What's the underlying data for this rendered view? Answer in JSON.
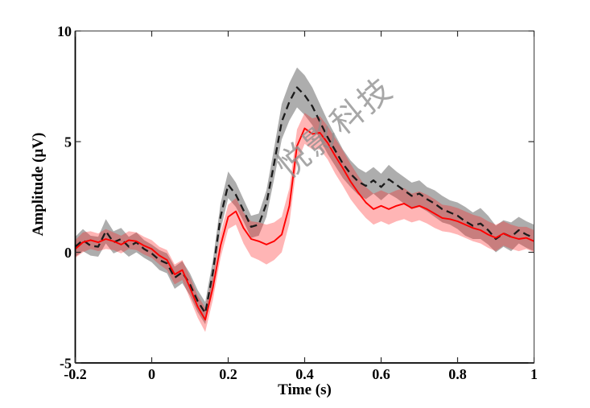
{
  "figure": {
    "background": "#ffffff",
    "watermark": {
      "text": "悦影科技",
      "color": "#8f8f8f",
      "rotation_deg": -39
    }
  },
  "chart_data": {
    "type": "line",
    "title": "",
    "xlabel": "Time (s)",
    "ylabel": "Amplitude (µV)",
    "xlim": [
      -0.2,
      1.0
    ],
    "ylim": [
      -5,
      10
    ],
    "grid": false,
    "legend": null,
    "box": true,
    "ticks_direction": "in",
    "xticks": {
      "values": [
        -0.2,
        0,
        0.2,
        0.4,
        0.6,
        0.8,
        1.0
      ],
      "labels": [
        "-0.2",
        "0",
        "0.2",
        "0.4",
        "0.6",
        "0.8",
        "1"
      ]
    },
    "yticks": {
      "values": [
        -5,
        0,
        5,
        10
      ],
      "labels": [
        "-5",
        "0",
        "5",
        "10"
      ]
    },
    "x": [
      -0.2,
      -0.18,
      -0.16,
      -0.14,
      -0.12,
      -0.1,
      -0.08,
      -0.06,
      -0.04,
      -0.02,
      0,
      0.02,
      0.04,
      0.06,
      0.08,
      0.1,
      0.12,
      0.14,
      0.16,
      0.18,
      0.2,
      0.22,
      0.24,
      0.26,
      0.28,
      0.3,
      0.32,
      0.34,
      0.36,
      0.38,
      0.4,
      0.42,
      0.44,
      0.46,
      0.48,
      0.5,
      0.52,
      0.54,
      0.56,
      0.58,
      0.6,
      0.62,
      0.64,
      0.66,
      0.68,
      0.7,
      0.72,
      0.74,
      0.76,
      0.78,
      0.8,
      0.82,
      0.84,
      0.86,
      0.88,
      0.9,
      0.92,
      0.94,
      0.96,
      0.98,
      1.0
    ],
    "series": [
      {
        "name": "condition-black-dashed",
        "line_color": "#1a1a1a",
        "line_style": "dashed",
        "line_width": 2.3,
        "band_color": "rgba(60,60,60,0.42)",
        "values": [
          0.25,
          0.55,
          0.3,
          0.25,
          0.95,
          0.45,
          0.6,
          0.25,
          0.45,
          0.15,
          -0.05,
          -0.35,
          -0.5,
          -1.15,
          -0.9,
          -1.45,
          -2.2,
          -2.75,
          -0.9,
          1.6,
          3.05,
          2.6,
          1.9,
          1.15,
          1.25,
          2.2,
          4.0,
          5.9,
          6.8,
          7.45,
          7.1,
          6.6,
          5.9,
          5.2,
          4.6,
          4.0,
          3.55,
          3.2,
          3.0,
          3.25,
          2.95,
          3.3,
          3.05,
          2.8,
          2.55,
          2.65,
          2.4,
          2.2,
          1.95,
          1.8,
          1.65,
          1.4,
          1.2,
          1.3,
          1.0,
          0.6,
          0.85,
          0.7,
          1.0,
          0.8,
          0.65
        ],
        "band_halfwidth": [
          0.45,
          0.5,
          0.45,
          0.45,
          0.55,
          0.5,
          0.5,
          0.45,
          0.45,
          0.4,
          0.4,
          0.45,
          0.45,
          0.5,
          0.5,
          0.5,
          0.5,
          0.5,
          0.55,
          0.6,
          0.6,
          0.55,
          0.5,
          0.5,
          0.5,
          0.6,
          0.7,
          0.8,
          0.85,
          0.9,
          0.9,
          0.85,
          0.8,
          0.75,
          0.7,
          0.65,
          0.6,
          0.6,
          0.6,
          0.6,
          0.6,
          0.65,
          0.6,
          0.6,
          0.6,
          0.6,
          0.55,
          0.6,
          0.6,
          0.55,
          0.6,
          0.65,
          0.6,
          0.7,
          0.65,
          0.6,
          0.6,
          0.65,
          0.6,
          0.6,
          0.6
        ]
      },
      {
        "name": "condition-red-solid",
        "line_color": "#ff0000",
        "line_style": "solid",
        "line_width": 1.9,
        "band_color": "rgba(255,30,30,0.33)",
        "values": [
          0.15,
          0.45,
          0.55,
          0.45,
          0.6,
          0.5,
          0.35,
          0.55,
          0.5,
          0.3,
          0.15,
          -0.15,
          -0.35,
          -1.0,
          -0.8,
          -1.6,
          -2.45,
          -3.05,
          -1.6,
          0.3,
          1.6,
          1.85,
          1.1,
          0.6,
          0.5,
          0.35,
          0.5,
          0.8,
          2.1,
          4.8,
          5.6,
          5.35,
          5.4,
          4.95,
          4.35,
          3.8,
          3.2,
          2.7,
          2.25,
          1.95,
          2.1,
          1.95,
          2.1,
          2.2,
          2.0,
          2.1,
          1.95,
          1.75,
          1.55,
          1.5,
          1.4,
          1.25,
          1.1,
          1.0,
          0.8,
          0.65,
          0.85,
          0.7,
          0.6,
          0.65,
          0.5
        ],
        "band_halfwidth": [
          0.4,
          0.45,
          0.4,
          0.4,
          0.45,
          0.4,
          0.4,
          0.4,
          0.4,
          0.4,
          0.4,
          0.4,
          0.45,
          0.45,
          0.45,
          0.5,
          0.5,
          0.55,
          0.55,
          0.55,
          0.55,
          0.6,
          0.7,
          0.8,
          0.85,
          0.9,
          0.85,
          0.8,
          0.8,
          0.75,
          0.7,
          0.7,
          0.75,
          0.75,
          0.8,
          0.8,
          0.8,
          0.75,
          0.7,
          0.7,
          0.7,
          0.7,
          0.7,
          0.7,
          0.65,
          0.65,
          0.65,
          0.65,
          0.6,
          0.6,
          0.6,
          0.6,
          0.6,
          0.6,
          0.6,
          0.6,
          0.55,
          0.55,
          0.55,
          0.5,
          0.5
        ]
      }
    ]
  }
}
